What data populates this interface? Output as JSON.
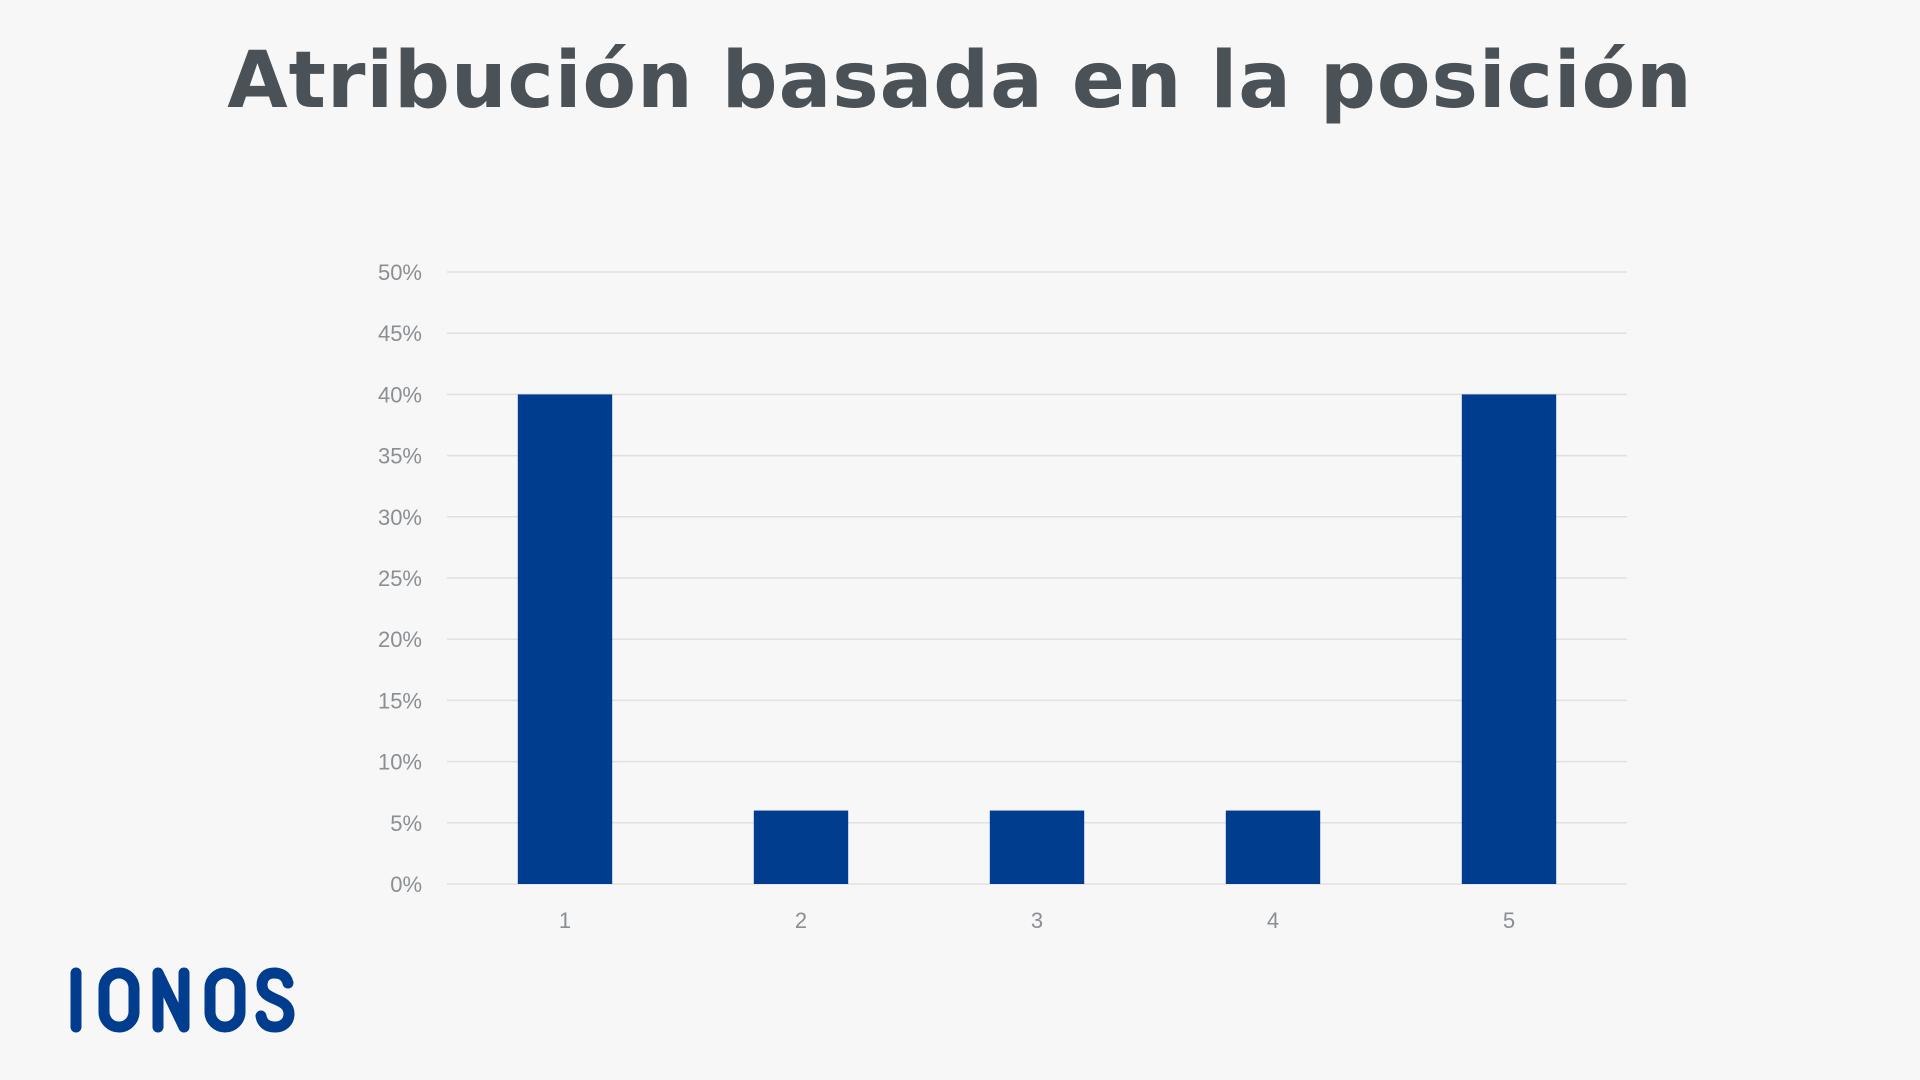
{
  "page": {
    "title": "Atribución basada en la posición",
    "background": "#f7f7f7",
    "title_color": "#4a5257"
  },
  "logo": {
    "text": "IONOS",
    "color": "#003d8f"
  },
  "chart_data": {
    "type": "bar",
    "title": "Atribución basada en la posición",
    "categories": [
      "1",
      "2",
      "3",
      "4",
      "5"
    ],
    "values": [
      40,
      6,
      6,
      6,
      40
    ],
    "xlabel": "",
    "ylabel": "",
    "ylim": [
      0,
      50
    ],
    "yticks": [
      "0%",
      "5%",
      "10%",
      "15%",
      "20%",
      "25%",
      "30%",
      "35%",
      "40%",
      "45%",
      "50%"
    ],
    "grid": true,
    "legend": "none",
    "bar_color": "#003d8f",
    "grid_color": "#e0e0e0",
    "tick_color": "#8a8f94"
  }
}
